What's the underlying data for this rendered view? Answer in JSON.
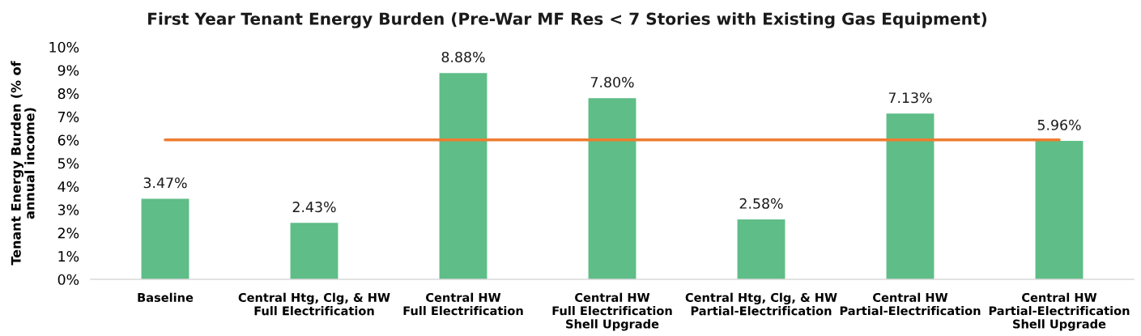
{
  "chart_data": {
    "type": "bar",
    "title": "First Year Tenant Energy Burden (Pre-War MF Res < 7 Stories with Existing Gas Equipment)",
    "ylabel": "Tenant Energy Burden (% of\nannual income)",
    "categories": [
      "Baseline",
      "Central Htg, Clg, & HW\nFull Electrification",
      "Central HW\nFull Electrification",
      "Central HW\nFull Electrification\nShell Upgrade",
      "Central Htg, Clg, & HW\nPartial-Electrification",
      "Central HW\nPartial-Electrification",
      "Central HW\nPartial-Electrification\nShell Upgrade"
    ],
    "series": [
      {
        "color": "#5fbd87",
        "values": [
          3.47,
          2.43,
          8.88,
          7.8,
          2.58,
          7.13,
          5.96
        ],
        "value_labels": [
          "3.47%",
          "2.43%",
          "8.88%",
          "7.80%",
          "2.58%",
          "7.13%",
          "5.96%"
        ]
      },
      {
        "type": "line",
        "color": "#ed7d31",
        "values": [
          6,
          6,
          6,
          6,
          6,
          6,
          6
        ],
        "line_style": "solid",
        "marker": "none"
      }
    ],
    "ylim": [
      0,
      10
    ],
    "yticks": [
      {
        "value": 0,
        "label": "0%"
      },
      {
        "value": 1,
        "label": "1%"
      },
      {
        "value": 2,
        "label": "2%"
      },
      {
        "value": 3,
        "label": "3%"
      },
      {
        "value": 4,
        "label": "4%"
      },
      {
        "value": 5,
        "label": "5%"
      },
      {
        "value": 6,
        "label": "6%"
      },
      {
        "value": 7,
        "label": "7%"
      },
      {
        "value": 8,
        "label": "8%"
      },
      {
        "value": 9,
        "label": "9%"
      },
      {
        "value": 10,
        "label": "10%"
      }
    ],
    "grid": false
  }
}
